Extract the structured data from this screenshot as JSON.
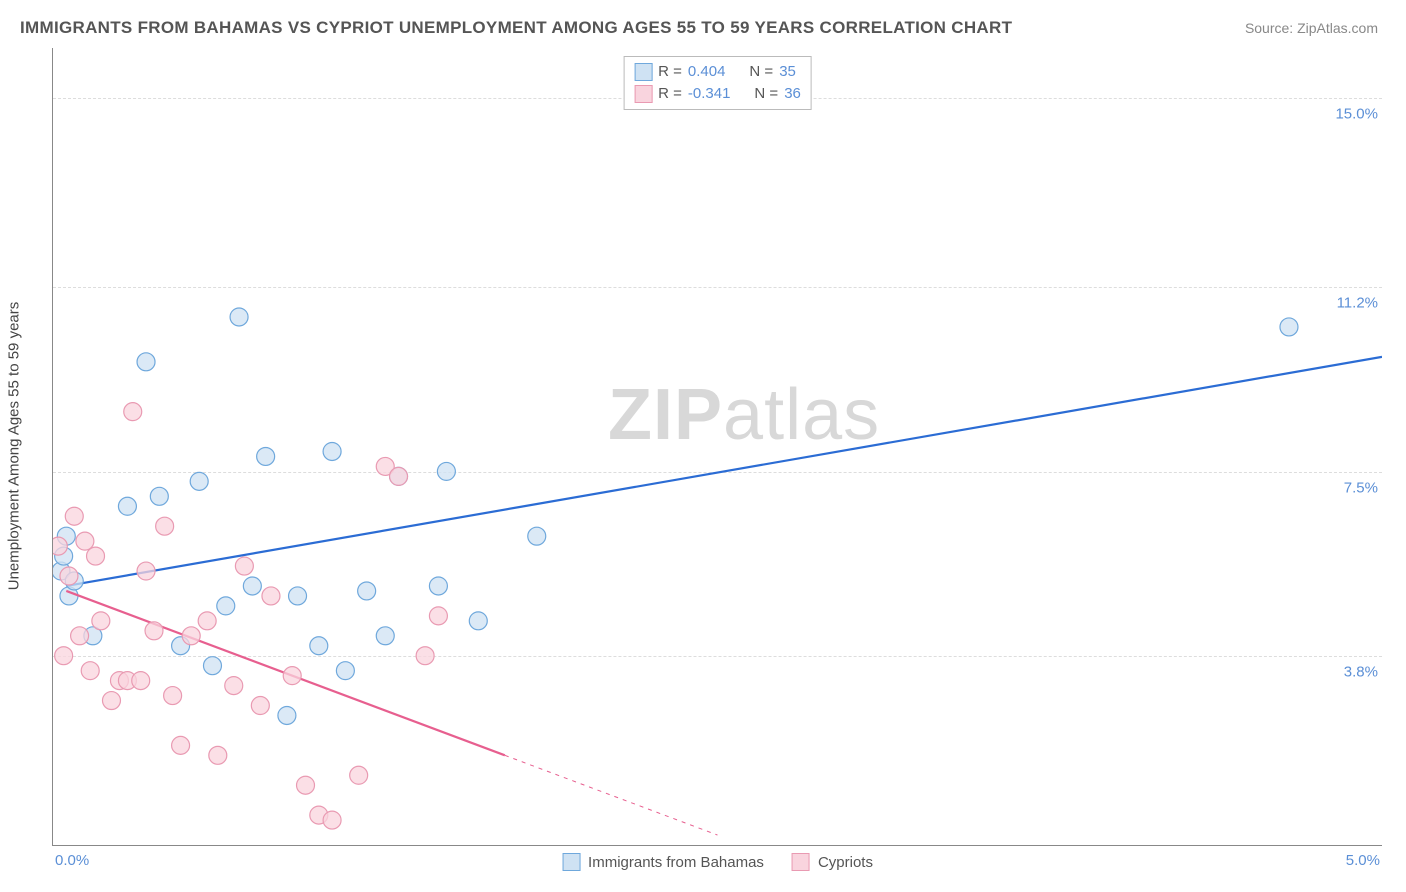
{
  "title": "IMMIGRANTS FROM BAHAMAS VS CYPRIOT UNEMPLOYMENT AMONG AGES 55 TO 59 YEARS CORRELATION CHART",
  "source": "Source: ZipAtlas.com",
  "ylabel": "Unemployment Among Ages 55 to 59 years",
  "watermark_bold": "ZIP",
  "watermark_rest": "atlas",
  "chart": {
    "type": "scatter-correlation",
    "x_range": [
      0.0,
      5.0
    ],
    "y_range": [
      0.0,
      16.0
    ],
    "x_ticks": [
      {
        "v": 0.0,
        "label": "0.0%"
      },
      {
        "v": 5.0,
        "label": "5.0%"
      }
    ],
    "y_ticks": [
      {
        "v": 3.8,
        "label": "3.8%"
      },
      {
        "v": 7.5,
        "label": "7.5%"
      },
      {
        "v": 11.2,
        "label": "11.2%"
      },
      {
        "v": 15.0,
        "label": "15.0%"
      }
    ],
    "grid_color": "#dddddd",
    "background_color": "#ffffff",
    "axis_color": "#888888",
    "marker_radius": 9,
    "marker_stroke_width": 1.2,
    "line_width": 2.2,
    "series": [
      {
        "name": "Immigrants from Bahamas",
        "fill": "#cfe2f3",
        "stroke": "#6fa8dc",
        "line_color": "#2b6cd4",
        "R": "0.404",
        "N": "35",
        "trend": {
          "x1": 0.05,
          "y1": 5.2,
          "x2": 5.0,
          "y2": 9.8,
          "dash_from_x": null
        },
        "points": [
          [
            0.03,
            5.5
          ],
          [
            0.04,
            5.8
          ],
          [
            0.05,
            6.2
          ],
          [
            0.06,
            5.0
          ],
          [
            0.08,
            5.3
          ],
          [
            0.15,
            4.2
          ],
          [
            0.28,
            6.8
          ],
          [
            0.35,
            9.7
          ],
          [
            0.4,
            7.0
          ],
          [
            0.48,
            4.0
          ],
          [
            0.55,
            7.3
          ],
          [
            0.6,
            3.6
          ],
          [
            0.65,
            4.8
          ],
          [
            0.7,
            10.6
          ],
          [
            0.75,
            5.2
          ],
          [
            0.8,
            7.8
          ],
          [
            0.88,
            2.6
          ],
          [
            0.92,
            5.0
          ],
          [
            1.0,
            4.0
          ],
          [
            1.05,
            7.9
          ],
          [
            1.1,
            3.5
          ],
          [
            1.18,
            5.1
          ],
          [
            1.25,
            4.2
          ],
          [
            1.3,
            7.4
          ],
          [
            1.45,
            5.2
          ],
          [
            1.48,
            7.5
          ],
          [
            1.6,
            4.5
          ],
          [
            1.82,
            6.2
          ],
          [
            4.65,
            10.4
          ]
        ]
      },
      {
        "name": "Cypriots",
        "fill": "#f9d4de",
        "stroke": "#e99ab2",
        "line_color": "#e75f8f",
        "R": "-0.341",
        "N": "36",
        "trend": {
          "x1": 0.05,
          "y1": 5.1,
          "x2": 2.5,
          "y2": 0.2,
          "dash_from_x": 1.7
        },
        "points": [
          [
            0.02,
            6.0
          ],
          [
            0.04,
            3.8
          ],
          [
            0.06,
            5.4
          ],
          [
            0.08,
            6.6
          ],
          [
            0.1,
            4.2
          ],
          [
            0.12,
            6.1
          ],
          [
            0.14,
            3.5
          ],
          [
            0.16,
            5.8
          ],
          [
            0.18,
            4.5
          ],
          [
            0.22,
            2.9
          ],
          [
            0.25,
            3.3
          ],
          [
            0.28,
            3.3
          ],
          [
            0.3,
            8.7
          ],
          [
            0.33,
            3.3
          ],
          [
            0.35,
            5.5
          ],
          [
            0.38,
            4.3
          ],
          [
            0.42,
            6.4
          ],
          [
            0.45,
            3.0
          ],
          [
            0.48,
            2.0
          ],
          [
            0.52,
            4.2
          ],
          [
            0.58,
            4.5
          ],
          [
            0.62,
            1.8
          ],
          [
            0.68,
            3.2
          ],
          [
            0.72,
            5.6
          ],
          [
            0.78,
            2.8
          ],
          [
            0.82,
            5.0
          ],
          [
            0.9,
            3.4
          ],
          [
            0.95,
            1.2
          ],
          [
            1.0,
            0.6
          ],
          [
            1.05,
            0.5
          ],
          [
            1.15,
            1.4
          ],
          [
            1.25,
            7.6
          ],
          [
            1.3,
            7.4
          ],
          [
            1.4,
            3.8
          ],
          [
            1.45,
            4.6
          ]
        ]
      }
    ]
  },
  "legend_top": {
    "rows": [
      {
        "swatch_fill": "#cfe2f3",
        "swatch_stroke": "#6fa8dc",
        "r_label": "R =",
        "r_val": "0.404",
        "n_label": "N =",
        "n_val": "35"
      },
      {
        "swatch_fill": "#f9d4de",
        "swatch_stroke": "#e99ab2",
        "r_label": "R =",
        "r_val": "-0.341",
        "n_label": "N =",
        "n_val": "36"
      }
    ]
  },
  "legend_bottom": {
    "items": [
      {
        "swatch_fill": "#cfe2f3",
        "swatch_stroke": "#6fa8dc",
        "label": "Immigrants from Bahamas"
      },
      {
        "swatch_fill": "#f9d4de",
        "swatch_stroke": "#e99ab2",
        "label": "Cypriots"
      }
    ]
  }
}
